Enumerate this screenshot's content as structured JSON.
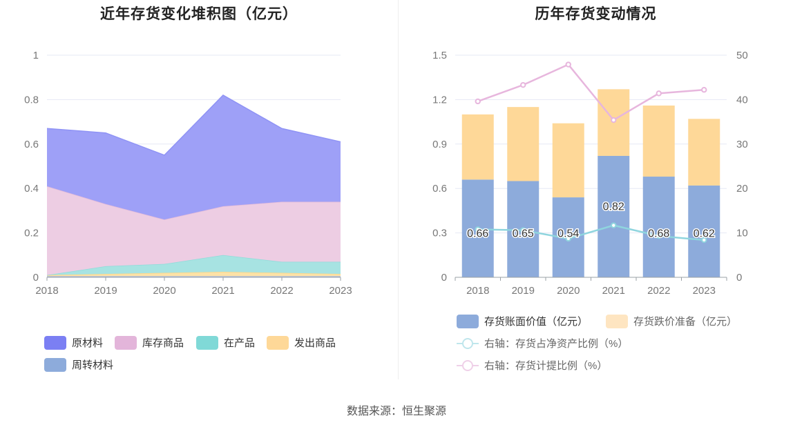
{
  "source": "数据来源：恒生聚源",
  "colors": {
    "raw_material": "#8a8ff6",
    "stock_goods": "#ecc8e1",
    "wip": "#9ee3e1",
    "shipped": "#fde2a6",
    "revolving": "#b2c3e6",
    "book_value": "#8dabdb",
    "impairment": "#fed898",
    "line_ratio_net": "#8fd5de",
    "line_provision": "#e7b6dd",
    "grid": "#e6e8f5",
    "axis": "#9aa0a6"
  },
  "chart_data": [
    {
      "type": "area",
      "stacked": true,
      "title": "近年存货变化堆积图（亿元）",
      "categories": [
        "2018",
        "2019",
        "2020",
        "2021",
        "2022",
        "2023"
      ],
      "ylim": [
        0,
        1
      ],
      "yticks": [
        "0",
        "0.2",
        "0.4",
        "0.6",
        "0.8",
        "1"
      ],
      "ytick_values": [
        0,
        0.2,
        0.4,
        0.6,
        0.8,
        1
      ],
      "series": [
        {
          "name": "周转材料",
          "key": "revolving",
          "values": [
            0.005,
            0.005,
            0.005,
            0.005,
            0.005,
            0.005
          ]
        },
        {
          "name": "发出商品",
          "key": "shipped",
          "values": [
            0.005,
            0.01,
            0.015,
            0.02,
            0.015,
            0.01
          ]
        },
        {
          "name": "在产品",
          "key": "wip",
          "values": [
            0.0,
            0.035,
            0.04,
            0.075,
            0.05,
            0.055
          ]
        },
        {
          "name": "库存商品",
          "key": "stock_goods",
          "values": [
            0.4,
            0.28,
            0.2,
            0.22,
            0.27,
            0.27
          ]
        },
        {
          "name": "原材料",
          "key": "raw_material",
          "values": [
            0.26,
            0.32,
            0.29,
            0.5,
            0.33,
            0.27
          ]
        }
      ],
      "legend": [
        {
          "name": "原材料",
          "key": "raw_material"
        },
        {
          "name": "库存商品",
          "key": "stock_goods"
        },
        {
          "name": "在产品",
          "key": "wip"
        },
        {
          "name": "发出商品",
          "key": "shipped"
        },
        {
          "name": "周转材料",
          "key": "revolving"
        }
      ]
    },
    {
      "type": "bar",
      "stacked": true,
      "title": "历年存货变动情况",
      "categories": [
        "2018",
        "2019",
        "2020",
        "2021",
        "2022",
        "2023"
      ],
      "ylim_left": [
        0,
        1.5
      ],
      "yticks_left": [
        "0",
        "0.3",
        "0.6",
        "0.9",
        "1.2",
        "1.5"
      ],
      "ytick_values_left": [
        0,
        0.3,
        0.6,
        0.9,
        1.2,
        1.5
      ],
      "ylim_right": [
        0,
        50
      ],
      "yticks_right": [
        "0",
        "10",
        "20",
        "30",
        "40",
        "50"
      ],
      "ytick_values_right": [
        0,
        10,
        20,
        30,
        40,
        50
      ],
      "bar_series": [
        {
          "name": "存货账面价值（亿元）",
          "key": "book_value",
          "values": [
            0.66,
            0.65,
            0.54,
            0.82,
            0.68,
            0.62
          ],
          "labels": [
            "0.66",
            "0.65",
            "0.54",
            "0.82",
            "0.68",
            "0.62"
          ]
        },
        {
          "name": "存货跌价准备（亿元）",
          "key": "impairment",
          "values": [
            0.44,
            0.5,
            0.5,
            0.45,
            0.48,
            0.45
          ]
        }
      ],
      "line_series": [
        {
          "name": "右轴：存货占净资产比例（%）",
          "key": "line_ratio_net",
          "values": [
            10.8,
            10.6,
            8.7,
            11.7,
            9.3,
            8.4
          ]
        },
        {
          "name": "右轴：存货计提比例（%）",
          "key": "line_provision",
          "values": [
            39.6,
            43.3,
            47.9,
            35.4,
            41.4,
            42.2
          ]
        }
      ]
    }
  ]
}
